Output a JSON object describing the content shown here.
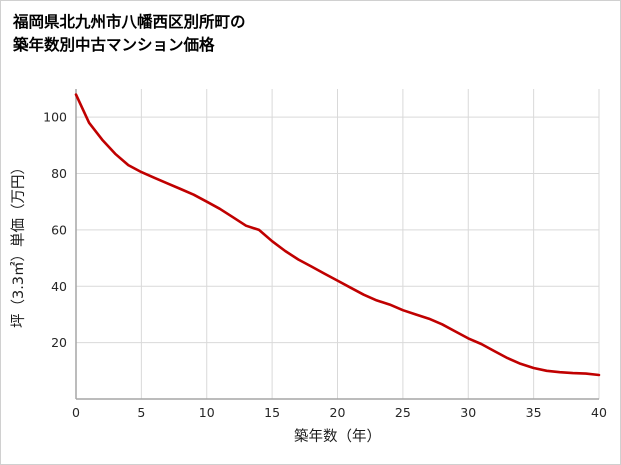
{
  "title": {
    "line1": "福岡県北九州市八幡西区別所町の",
    "line2": "築年数別中古マンション価格"
  },
  "chart_data": {
    "type": "line",
    "title": "福岡県北九州市八幡西区別所町の築年数別中古マンション価格",
    "xlabel": "築年数（年）",
    "ylabel": "坪（3.3㎡）単価（万円）",
    "x": [
      0,
      1,
      2,
      3,
      4,
      5,
      6,
      7,
      8,
      9,
      10,
      11,
      12,
      13,
      14,
      15,
      16,
      17,
      18,
      19,
      20,
      21,
      22,
      23,
      24,
      25,
      26,
      27,
      28,
      29,
      30,
      31,
      32,
      33,
      34,
      35,
      36,
      37,
      38,
      39,
      40
    ],
    "values": [
      108,
      98,
      92,
      87,
      83,
      80.5,
      78.5,
      76.5,
      74.5,
      72.5,
      70,
      67.5,
      64.5,
      61.5,
      60,
      56,
      52.5,
      49.5,
      47,
      44.5,
      42,
      39.5,
      37,
      35,
      33.5,
      31.5,
      30,
      28.5,
      26.5,
      24,
      21.5,
      19.5,
      17,
      14.5,
      12.5,
      11,
      10,
      9.5,
      9.2,
      9,
      8.5
    ],
    "xlim": [
      0,
      40
    ],
    "ylim": [
      0,
      110
    ],
    "xticks": [
      0,
      5,
      10,
      15,
      20,
      25,
      30,
      35,
      40
    ],
    "yticks": [
      20,
      40,
      60,
      80,
      100
    ],
    "grid": true,
    "legend": false,
    "line_color": "#c00000",
    "grid_color": "#d9d9d9",
    "axis_color": "#a6a6a6",
    "tick_color": "#262626"
  }
}
